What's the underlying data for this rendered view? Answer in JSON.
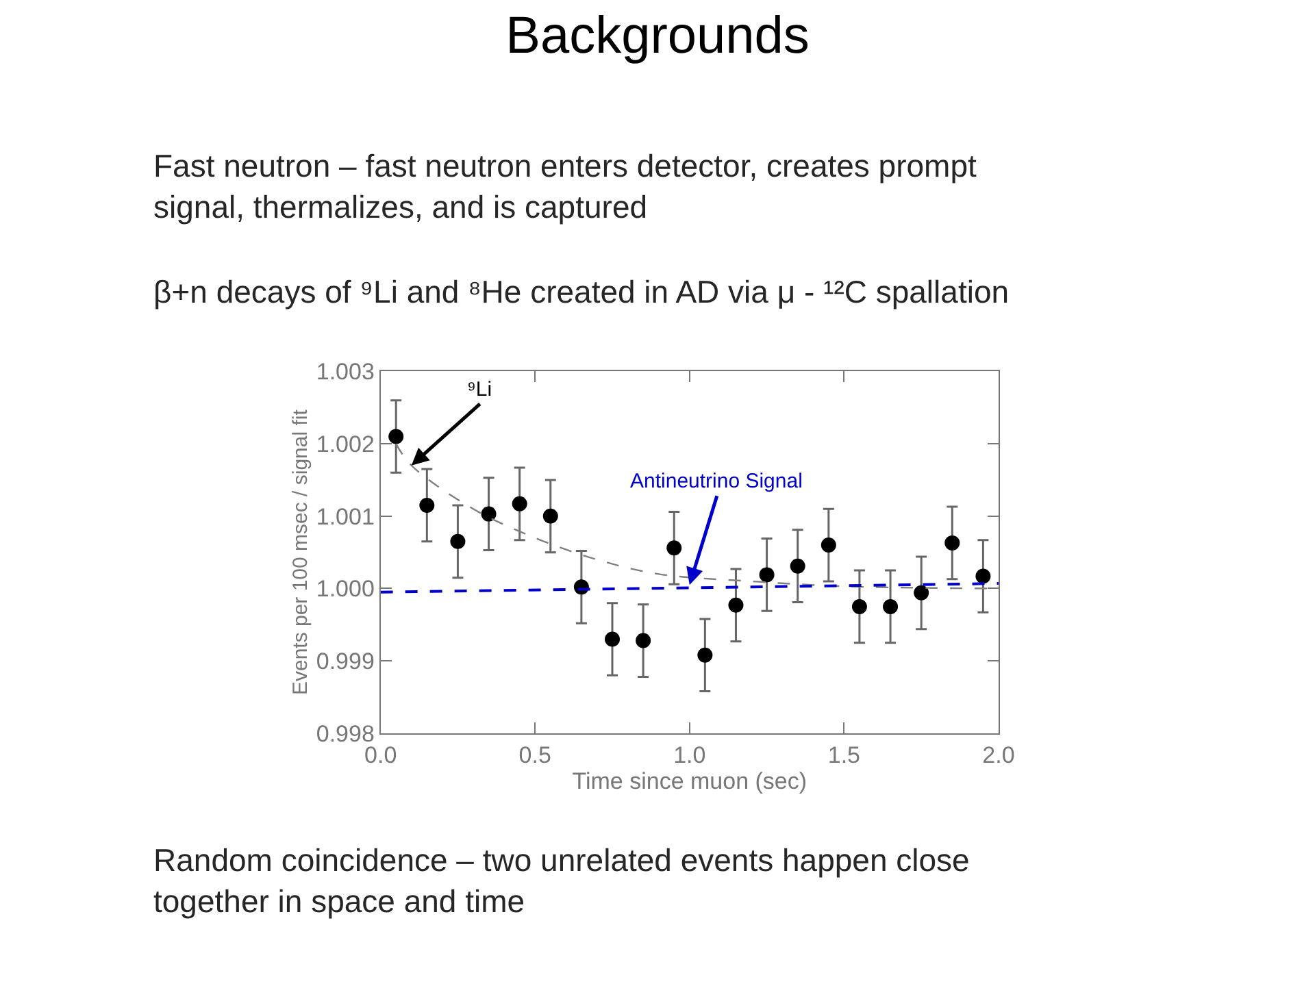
{
  "chart_data": {
    "type": "scatter",
    "title": "Backgrounds",
    "annotations": [
      "Fast neutron – fast neutron enters detector, creates prompt\nsignal, thermalizes, and is captured",
      "β+n decays of ⁹Li and ⁸He created in AD via μ - ¹²C spallation",
      "Random coincidence – two unrelated events happen close\ntogether in space and time",
      {
        "text": "⁹Li",
        "x": 0.1,
        "y": 1.0017
      },
      {
        "text": "Antineutrino Signal",
        "x": 1.0,
        "y": 1.00005
      }
    ],
    "xlabel": "Time since muon (sec)",
    "ylabel": "Events per 100 msec / signal fit",
    "x": [
      0.05,
      0.15,
      0.25,
      0.35,
      0.45,
      0.55,
      0.65,
      0.75,
      0.85,
      0.95,
      1.05,
      1.15,
      1.25,
      1.35,
      1.45,
      1.55,
      1.65,
      1.75,
      1.85,
      1.95
    ],
    "series": [
      {
        "color": "#000000",
        "marker": "circle",
        "values": [
          1.0021,
          1.00115,
          1.00065,
          1.00103,
          1.00117,
          1.001,
          1.00002,
          0.9993,
          0.99928,
          1.00056,
          0.99908,
          0.99977,
          1.00019,
          1.00031,
          1.0006,
          0.99975,
          0.99975,
          0.99994,
          1.00063,
          1.00017
        ],
        "errors": [
          0.0005,
          0.0005,
          0.0005,
          0.0005,
          0.0005,
          0.0005,
          0.0005,
          0.0005,
          0.0005,
          0.0005,
          0.0005,
          0.0005,
          0.0005,
          0.0005,
          0.0005,
          0.0005,
          0.0005,
          0.0005,
          0.0005,
          0.0005
        ]
      },
      {
        "color": "#808080",
        "type": "line",
        "line_style": "dashed",
        "x": [
          0.05,
          0.1,
          0.3,
          0.5,
          0.7,
          0.9,
          1.2,
          1.5,
          2.0
        ],
        "values": [
          1.002,
          1.0017,
          1.0011,
          1.0007,
          1.0004,
          1.0002,
          1.0001,
          1.00003,
          1.0
        ]
      },
      {
        "color": "#0000cc",
        "type": "line",
        "line_style": "dashed",
        "x": [
          0.0,
          2.0
        ],
        "values": [
          0.99995,
          1.00007
        ]
      }
    ],
    "xlim": [
      0.0,
      2.0
    ],
    "ylim": [
      0.998,
      1.003
    ],
    "xticks": [
      {
        "value": 0.0,
        "label": "0.0"
      },
      0.5,
      {
        "value": 1.0,
        "label": "1.0"
      },
      1.5,
      {
        "value": 2.0,
        "label": "2.0"
      }
    ],
    "yticks": [
      0.998,
      0.999,
      {
        "value": 1.0,
        "label": "1.000"
      },
      1.001,
      1.002,
      1.003
    ]
  }
}
